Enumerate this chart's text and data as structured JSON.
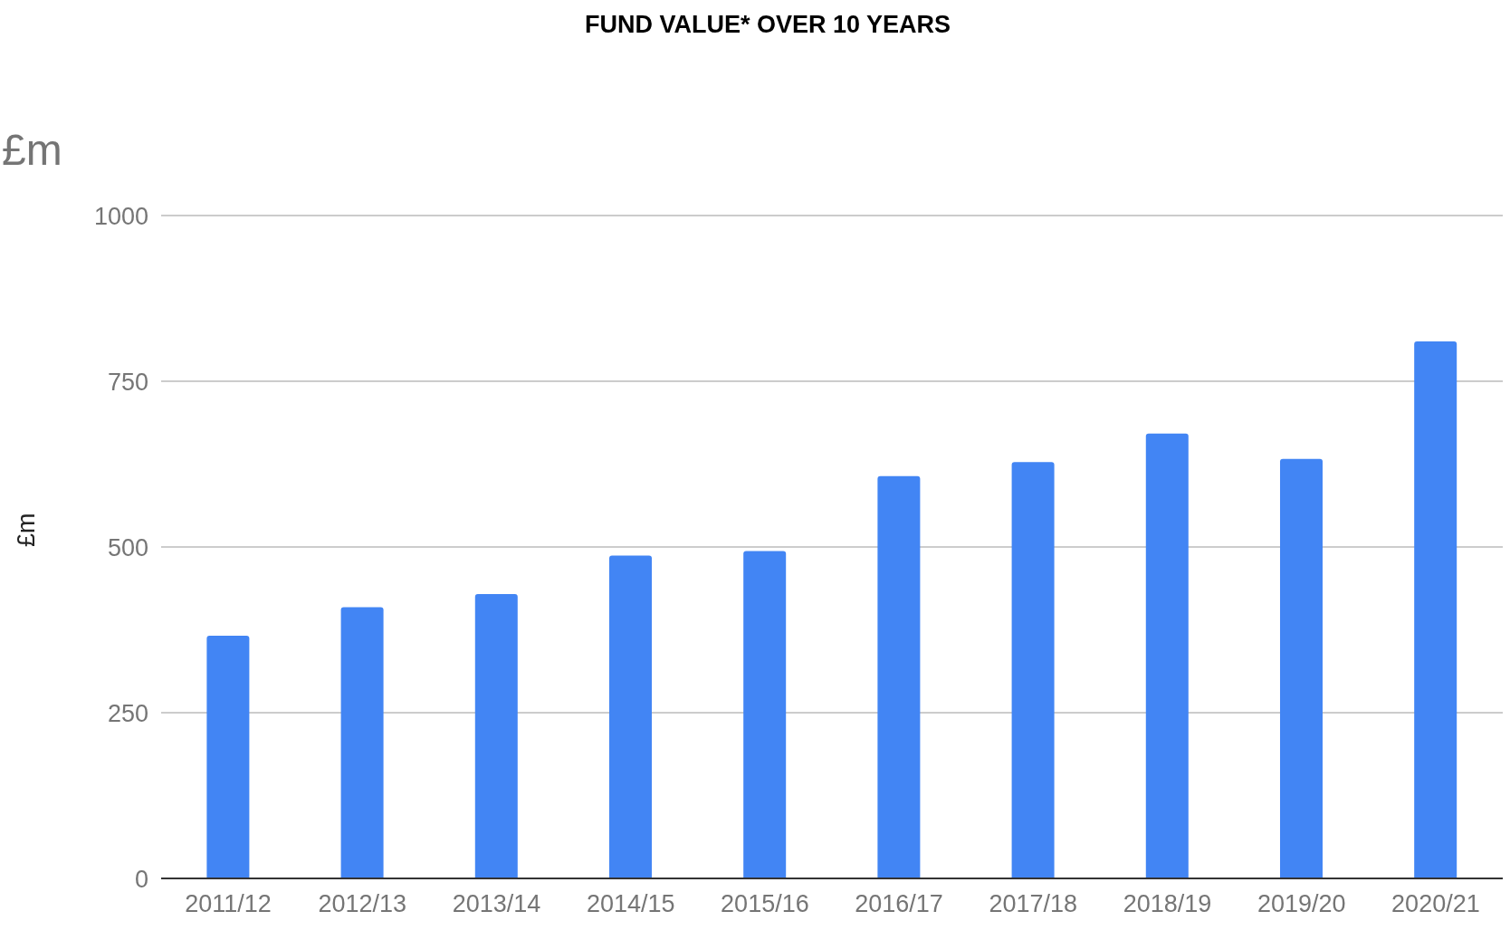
{
  "chart_data": {
    "type": "bar",
    "title": "FUND VALUE* OVER 10 YEARS",
    "ylabel": "£m",
    "annotations": [
      "£m"
    ],
    "categories": [
      "2011/12",
      "2012/13",
      "2013/14",
      "2014/15",
      "2015/16",
      "2016/17",
      "2017/18",
      "2018/19",
      "2019/20",
      "2020/21"
    ],
    "values": [
      366,
      409,
      429,
      487,
      494,
      607,
      628,
      671,
      633,
      810
    ],
    "color": "#4285f4",
    "ylim": [
      0,
      1000
    ],
    "yticks": [
      0,
      250,
      500,
      750,
      1000
    ],
    "grid": "y"
  }
}
